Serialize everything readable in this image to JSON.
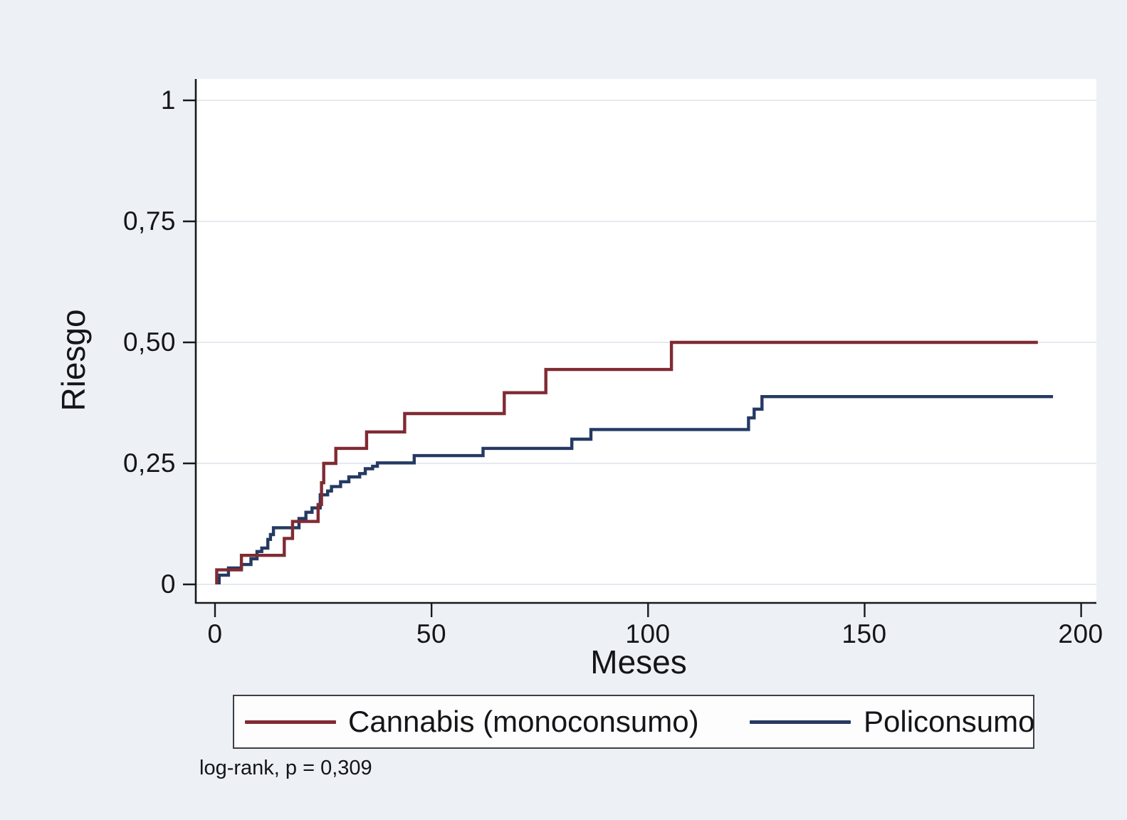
{
  "figure": {
    "background_color": "#edf1f5",
    "plot_background_color": "#ffffff",
    "gridline_color": "#e5eaf1",
    "axis_color": "#17191c",
    "text_color": "#141518"
  },
  "y_axis": {
    "title": "Riesgo",
    "tick_labels": [
      "1",
      "0,75",
      "0,50",
      "0,25",
      "0"
    ],
    "tick_values": [
      1,
      0.75,
      0.5,
      0.25,
      0
    ]
  },
  "x_axis": {
    "title": "Meses",
    "tick_labels": [
      "0",
      "50",
      "100",
      "150",
      "200"
    ],
    "tick_values": [
      0,
      50,
      100,
      150,
      200
    ]
  },
  "legend": {
    "items": [
      {
        "label": "Cannabis (monoconsumo)",
        "color": "#802b33"
      },
      {
        "label": "Policonsumo",
        "color": "#253a63"
      }
    ]
  },
  "footnote": "log-rank, p = 0,309",
  "chart_data": {
    "type": "line",
    "subtype": "kaplan-meier-cumulative-risk-step",
    "title": "",
    "xlabel": "Meses",
    "ylabel": "Riesgo",
    "xlim": [
      0,
      200
    ],
    "ylim": [
      0,
      1
    ],
    "xticks": [
      0,
      50,
      100,
      150,
      200
    ],
    "yticks": [
      0,
      0.25,
      0.5,
      0.75,
      1
    ],
    "grid": "horizontal",
    "legend_position": "bottom",
    "annotation": "log-rank, p = 0,309",
    "series": [
      {
        "name": "Policonsumo",
        "key": "policonsumo",
        "color": "#253a63",
        "start_month": 0.95,
        "end_month": 193.5,
        "steps": [
          [
            0.95,
            0.019
          ],
          [
            3.1,
            0.034
          ],
          [
            6.1,
            0.041
          ],
          [
            8.3,
            0.053
          ],
          [
            9.7,
            0.068
          ],
          [
            10.8,
            0.075
          ],
          [
            12.2,
            0.093
          ],
          [
            12.8,
            0.103
          ],
          [
            13.5,
            0.117
          ],
          [
            19.4,
            0.136
          ],
          [
            21.0,
            0.149
          ],
          [
            22.4,
            0.158
          ],
          [
            24.3,
            0.185
          ],
          [
            26.0,
            0.193
          ],
          [
            26.9,
            0.202
          ],
          [
            29.0,
            0.212
          ],
          [
            30.9,
            0.222
          ],
          [
            33.4,
            0.229
          ],
          [
            34.7,
            0.239
          ],
          [
            36.4,
            0.244
          ],
          [
            37.5,
            0.251
          ],
          [
            46.0,
            0.266
          ],
          [
            61.9,
            0.281
          ],
          [
            82.4,
            0.3
          ],
          [
            86.8,
            0.32
          ],
          [
            123.2,
            0.344
          ],
          [
            124.5,
            0.362
          ],
          [
            126.3,
            0.388
          ]
        ]
      },
      {
        "name": "Cannabis (monoconsumo)",
        "key": "cannabis",
        "color": "#802b33",
        "start_month": 0.4,
        "end_month": 190,
        "steps": [
          [
            0.4,
            0.03
          ],
          [
            6.1,
            0.06
          ],
          [
            16.0,
            0.095
          ],
          [
            17.9,
            0.13
          ],
          [
            23.8,
            0.165
          ],
          [
            24.6,
            0.21
          ],
          [
            25.1,
            0.25
          ],
          [
            27.9,
            0.281
          ],
          [
            35.0,
            0.315
          ],
          [
            43.8,
            0.353
          ],
          [
            66.8,
            0.396
          ],
          [
            76.4,
            0.444
          ],
          [
            105.4,
            0.5
          ]
        ]
      }
    ]
  }
}
